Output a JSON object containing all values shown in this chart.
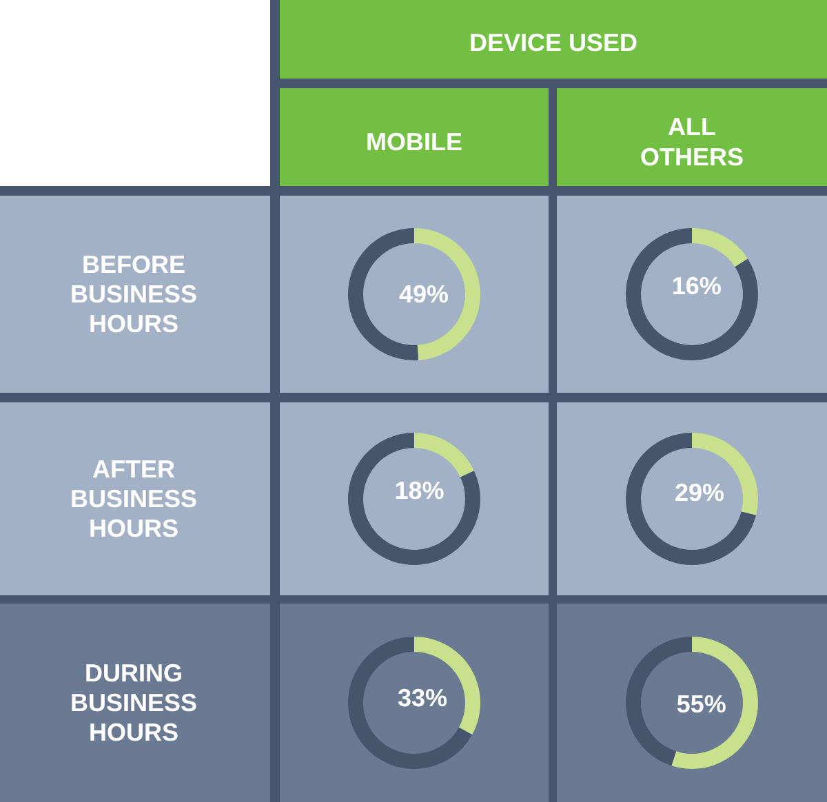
{
  "chart_data": [
    {
      "type": "other",
      "title": "DEVICE USED",
      "annotations": [
        "MOBILE",
        "ALL OTHERS",
        "BEFORE BUSINESS HOURS",
        "AFTER BUSINESS HOURS",
        "DURING BUSINESS HOURS"
      ]
    },
    {
      "type": "donut",
      "categories": [
        null,
        null
      ],
      "values": [
        49,
        51
      ],
      "colors": [
        "#c9e08c",
        "#46546c"
      ],
      "value_labels": [
        "49%",
        null
      ]
    },
    {
      "type": "donut",
      "categories": [
        null,
        null
      ],
      "values": [
        16,
        84
      ],
      "colors": [
        "#c9e08c",
        "#46546c"
      ],
      "value_labels": [
        "16%",
        null
      ]
    },
    {
      "type": "donut",
      "categories": [
        null,
        null
      ],
      "values": [
        18,
        82
      ],
      "colors": [
        "#c9e08c",
        "#46546c"
      ],
      "value_labels": [
        "18%",
        null
      ]
    },
    {
      "type": "donut",
      "categories": [
        null,
        null
      ],
      "values": [
        29,
        71
      ],
      "colors": [
        "#c9e08c",
        "#46546c"
      ],
      "value_labels": [
        "29%",
        null
      ]
    },
    {
      "type": "donut",
      "categories": [
        null,
        null
      ],
      "values": [
        33,
        67
      ],
      "colors": [
        "#c9e08c",
        "#46546c"
      ],
      "value_labels": [
        "33%",
        null
      ]
    },
    {
      "type": "donut",
      "categories": [
        null,
        null
      ],
      "values": [
        55,
        45
      ],
      "colors": [
        "#c9e08c",
        "#46546c"
      ],
      "value_labels": [
        "55%",
        null
      ]
    }
  ]
}
